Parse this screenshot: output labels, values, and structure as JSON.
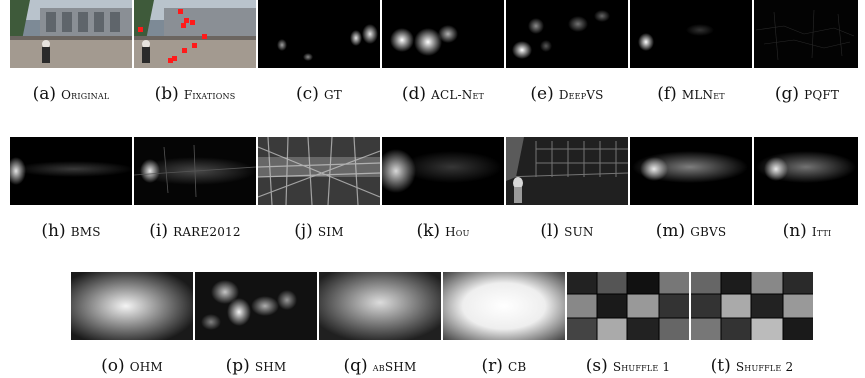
{
  "figure": {
    "rows": [
      [
        {
          "label": "(a)",
          "name": "Original"
        },
        {
          "label": "(b)",
          "name": "Fixations"
        },
        {
          "label": "(c)",
          "name": "GT"
        },
        {
          "label": "(d)",
          "name": "ACL-Net"
        },
        {
          "label": "(e)",
          "name": "DeepVS"
        },
        {
          "label": "(f)",
          "name": "MLNet"
        },
        {
          "label": "(g)",
          "name": "PQFT"
        }
      ],
      [
        {
          "label": "(h)",
          "name": "BMS"
        },
        {
          "label": "(i)",
          "name": "RARE2012"
        },
        {
          "label": "(j)",
          "name": "SIM"
        },
        {
          "label": "(k)",
          "name": "Hou"
        },
        {
          "label": "(l)",
          "name": "SUN"
        },
        {
          "label": "(m)",
          "name": "GBVS"
        },
        {
          "label": "(n)",
          "name": "Itti"
        }
      ],
      [
        {
          "label": "(o)",
          "name": "OHM"
        },
        {
          "label": "(p)",
          "name": "SHM"
        },
        {
          "label": "(q)",
          "name": "abSHM"
        },
        {
          "label": "(r)",
          "name": "CB"
        },
        {
          "label": "(s)",
          "name": "Shuffle 1"
        },
        {
          "label": "(t)",
          "name": "Shuffle 2"
        }
      ]
    ]
  },
  "colors": {
    "fixation_marker": "#ff1a1a",
    "background": "#ffffff"
  }
}
